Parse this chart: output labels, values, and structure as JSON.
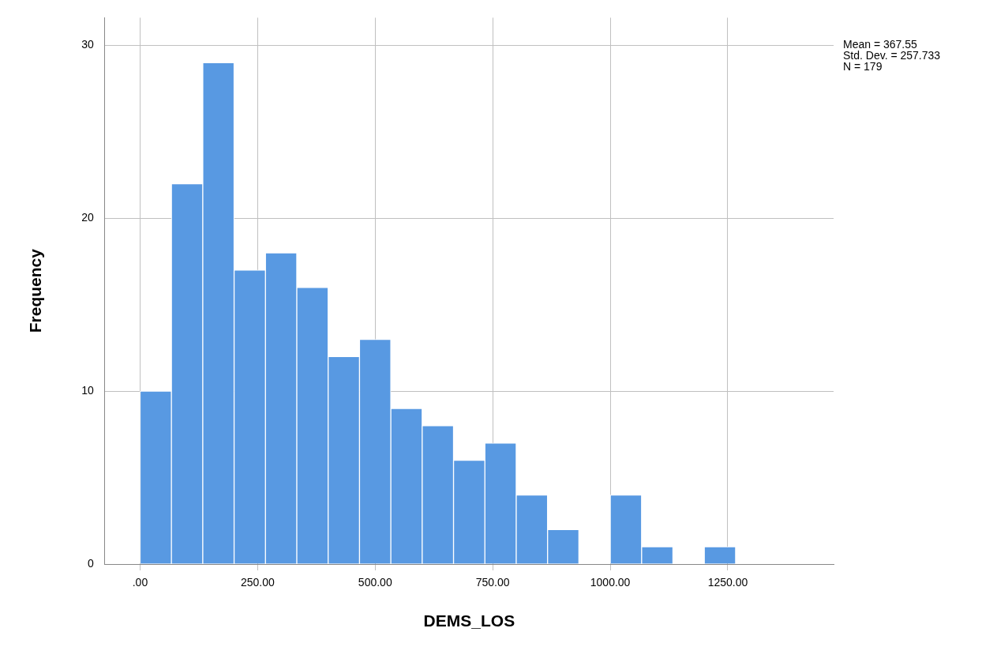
{
  "chart_data": {
    "type": "histogram",
    "xlabel": "DEMS_LOS",
    "ylabel": "Frequency",
    "bins": [
      0,
      66.67,
      133.33,
      200,
      266.67,
      333.33,
      400,
      466.67,
      533.33,
      600,
      666.67,
      733.33,
      800,
      866.67,
      933.33,
      1000,
      1066.67,
      1133.33,
      1200,
      1266.67
    ],
    "values": [
      10,
      22,
      29,
      17,
      18,
      16,
      12,
      13,
      9,
      8,
      6,
      7,
      4,
      2,
      0,
      4,
      1,
      0,
      1
    ],
    "color": "#5899e2",
    "xlim": [
      -75,
      1475
    ],
    "xticks": [
      {
        "value": 0,
        "label": ".00"
      },
      {
        "value": 250,
        "label": "250.00"
      },
      {
        "value": 500,
        "label": "500.00"
      },
      {
        "value": 750,
        "label": "750.00"
      },
      {
        "value": 1000,
        "label": "1000.00"
      },
      {
        "value": 1250,
        "label": "1250.00"
      }
    ],
    "ylim": [
      0,
      31.6
    ],
    "yticks": [
      0,
      10,
      20,
      30
    ],
    "grid": true,
    "annotations": [
      "Mean = 367.55",
      "Std. Dev. = 257.733",
      "N = 179"
    ]
  }
}
